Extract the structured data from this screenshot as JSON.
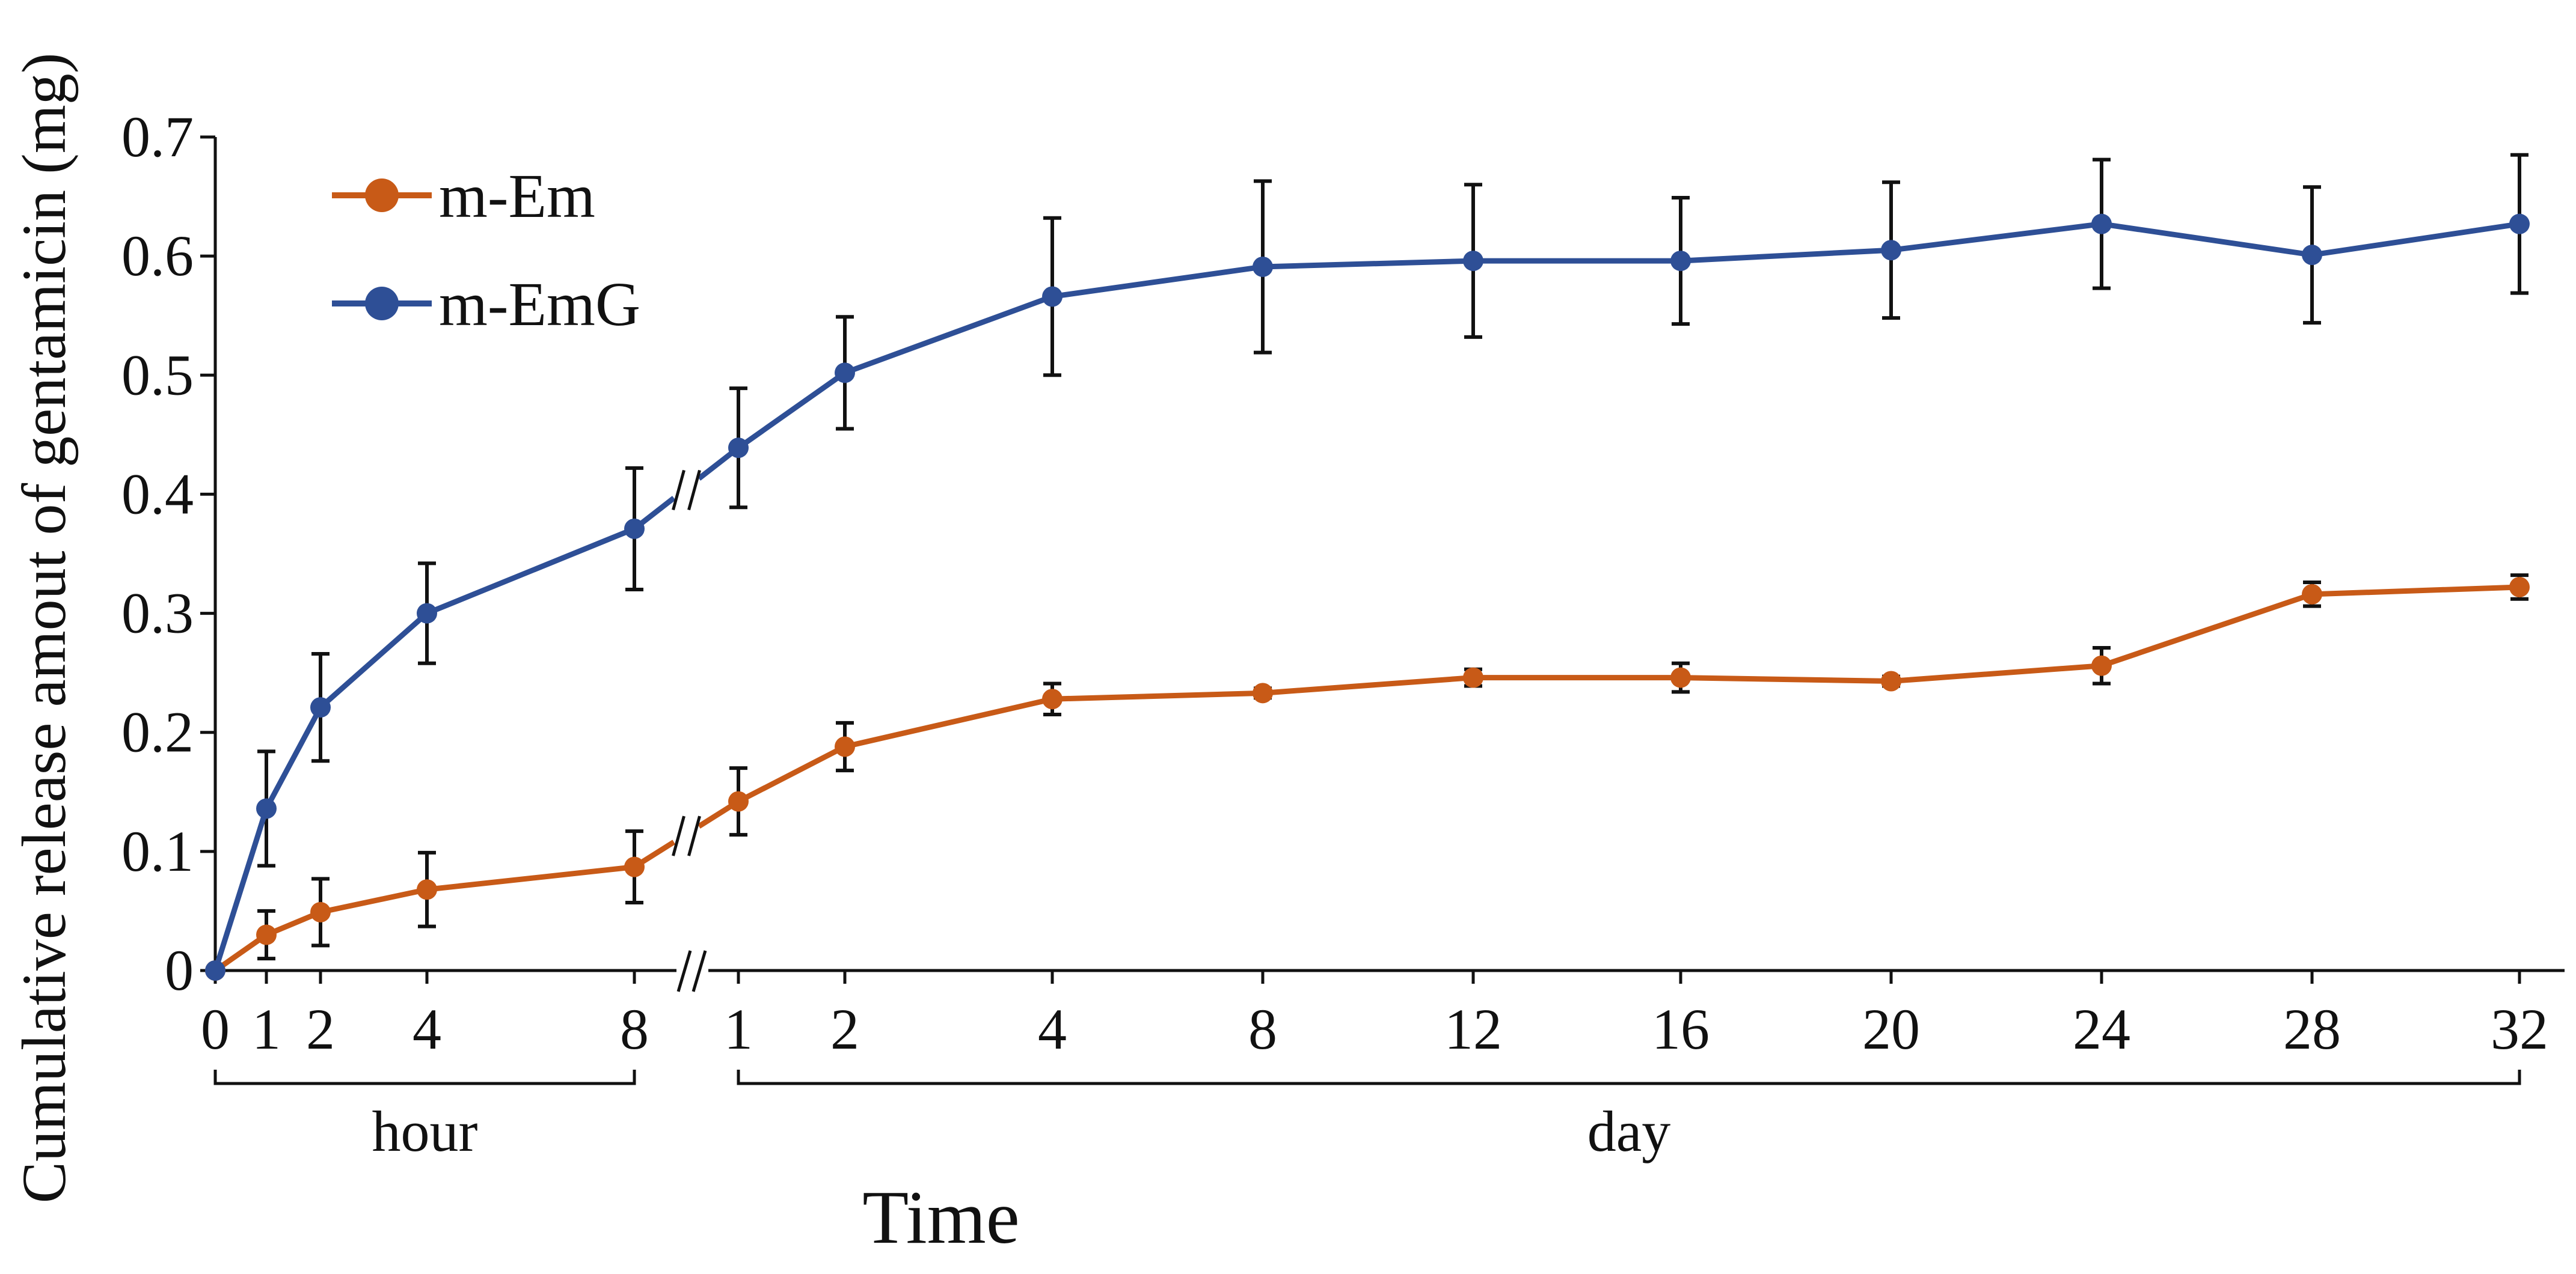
{
  "chart_data": {
    "type": "line",
    "ylabel": "Cumulative release amout of gentamicin (mg)",
    "xlabel": "Time",
    "ylim": [
      0,
      0.7
    ],
    "yticks": [
      0,
      0.1,
      0.2,
      0.3,
      0.4,
      0.5,
      0.6,
      0.7
    ],
    "ytick_labels": [
      "0",
      "0.1",
      "0.2",
      "0.3",
      "0.4",
      "0.5",
      "0.6",
      "0.7"
    ],
    "x_tick_labels": [
      "0",
      "1",
      "2",
      "4",
      "8",
      "1",
      "2",
      "4",
      "8",
      "12",
      "16",
      "20",
      "24",
      "28",
      "32"
    ],
    "groups": [
      {
        "label": "hour",
        "tick_count": 5
      },
      {
        "label": "day",
        "tick_count": 10
      }
    ],
    "series": [
      {
        "name": "m-Em",
        "color": "#C85A17",
        "values": [
          0,
          0.03,
          0.049,
          0.068,
          0.087,
          0.142,
          0.188,
          0.228,
          0.233,
          0.246,
          0.246,
          0.243,
          0.256,
          0.316,
          0.322
        ],
        "errors": [
          0,
          0.02,
          0.028,
          0.031,
          0.03,
          0.028,
          0.02,
          0.013,
          0.004,
          0.007,
          0.012,
          0.004,
          0.015,
          0.01,
          0.01
        ]
      },
      {
        "name": "m-EmG",
        "color": "#2E4F96",
        "values": [
          0,
          0.136,
          0.221,
          0.3,
          0.371,
          0.439,
          0.502,
          0.566,
          0.591,
          0.596,
          0.596,
          0.605,
          0.627,
          0.601,
          0.627
        ],
        "errors": [
          0,
          0.048,
          0.045,
          0.042,
          0.051,
          0.05,
          0.047,
          0.066,
          0.072,
          0.064,
          0.053,
          0.057,
          0.054,
          0.057,
          0.058
        ]
      }
    ],
    "legend": "top-left"
  }
}
